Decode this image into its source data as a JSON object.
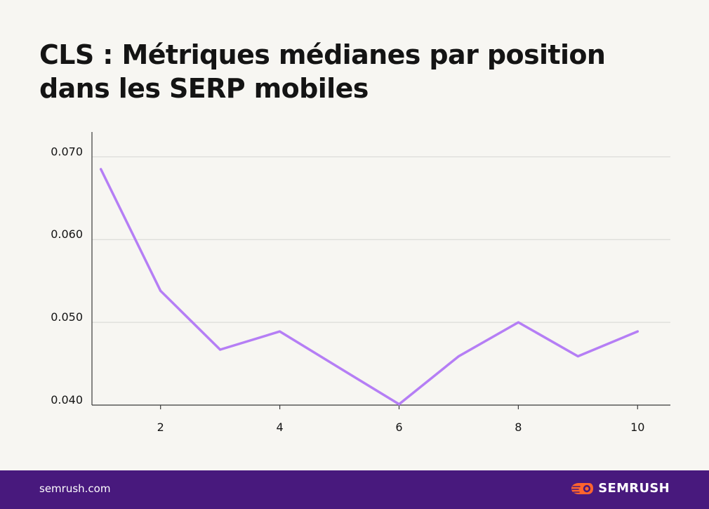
{
  "title": {
    "line1": "CLS : Métriques médianes par position",
    "line2": "dans les SERP mobiles"
  },
  "footer": {
    "site": "semrush.com",
    "brand": "SEMRUSH",
    "background_color": "#48197d",
    "logo_icon": "semrush-flame-icon",
    "logo_color": "#ff642d"
  },
  "chart_data": {
    "type": "line",
    "title": "CLS : Métriques médianes par position dans les SERP mobiles",
    "xlabel": "",
    "ylabel": "",
    "x": [
      1,
      2,
      3,
      4,
      5,
      6,
      7,
      8,
      9,
      10
    ],
    "series": [
      {
        "values": [
          0.0685,
          0.0538,
          0.0467,
          0.0489,
          0.0445,
          0.0401,
          0.0459,
          0.05,
          0.0459,
          0.0489
        ],
        "color": "#b57ef5"
      }
    ],
    "xticks": [
      2,
      4,
      6,
      8,
      10
    ],
    "xtick_labels": [
      "2",
      "4",
      "6",
      "8",
      "10"
    ],
    "yticks": [
      0.04,
      0.05,
      0.06,
      0.07
    ],
    "ytick_labels": [
      "0.040",
      "0.050",
      "0.060",
      "0.070"
    ],
    "xlim": [
      0.85,
      10.55
    ],
    "ylim": [
      0.04,
      0.073
    ],
    "grid": "horizontal",
    "legend": "none"
  }
}
